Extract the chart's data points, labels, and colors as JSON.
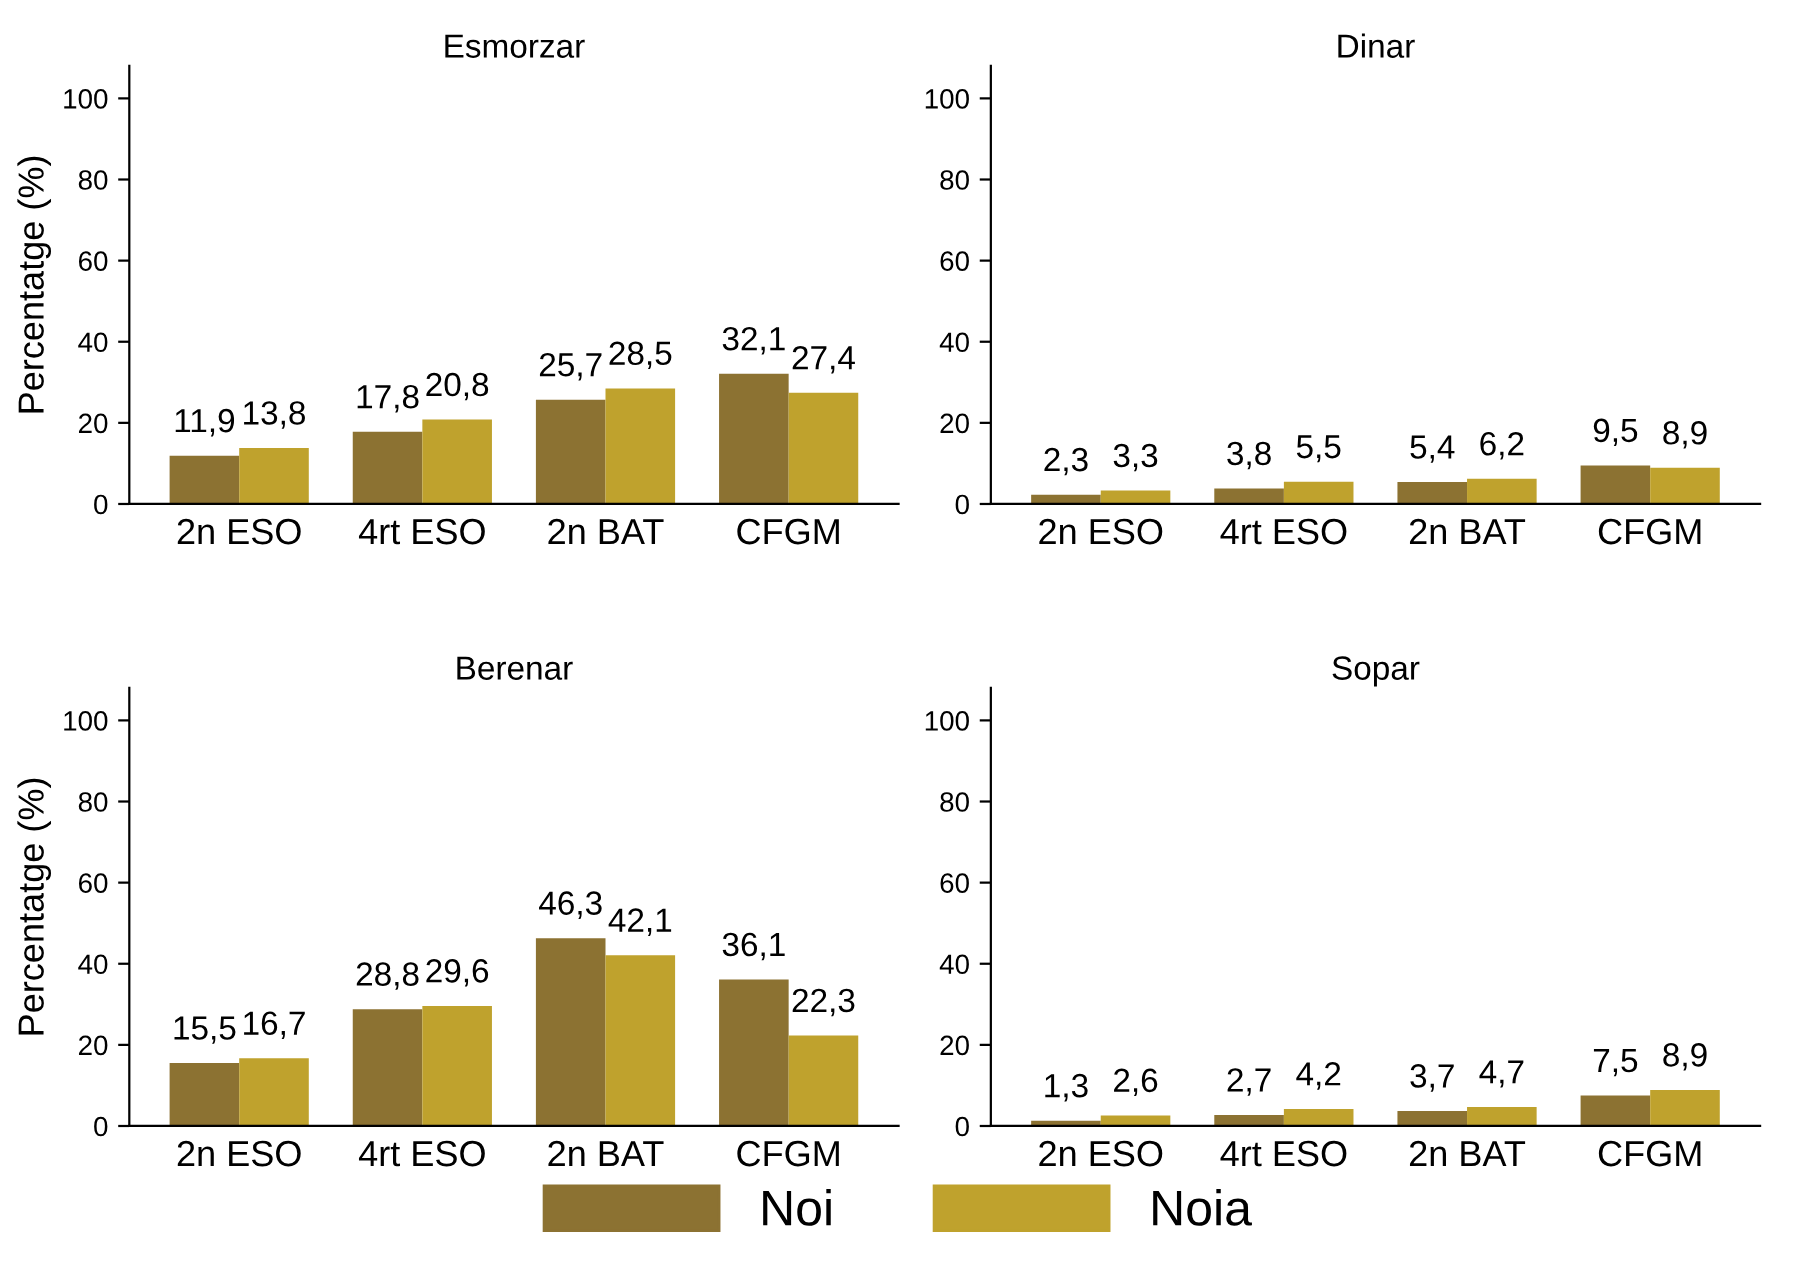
{
  "chart_data": [
    {
      "type": "bar",
      "title": "Esmorzar",
      "ylabel": "Percentatge (%)",
      "categories": [
        "2n ESO",
        "4rt ESO",
        "2n BAT",
        "CFGM"
      ],
      "ylim": [
        0,
        108
      ],
      "yticks": [
        0,
        20,
        40,
        60,
        80,
        100
      ],
      "grid": false,
      "legend": "bottom",
      "series": [
        {
          "name": "Noi",
          "color": "#8c7232",
          "values": [
            11.9,
            17.8,
            25.7,
            32.1
          ],
          "value_labels": [
            "11,9",
            "17,8",
            "25,7",
            "32,1"
          ]
        },
        {
          "name": "Noia",
          "color": "#bfa22d",
          "values": [
            13.8,
            20.8,
            28.5,
            27.4
          ],
          "value_labels": [
            "13,8",
            "20,8",
            "28,5",
            "27,4"
          ]
        }
      ]
    },
    {
      "type": "bar",
      "title": "Dinar",
      "categories": [
        "2n ESO",
        "4rt ESO",
        "2n BAT",
        "CFGM"
      ],
      "ylim": [
        0,
        108
      ],
      "yticks": [
        0,
        20,
        40,
        60,
        80,
        100
      ],
      "grid": false,
      "series": [
        {
          "name": "Noi",
          "color": "#8c7232",
          "values": [
            2.3,
            3.8,
            5.4,
            9.5
          ],
          "value_labels": [
            "2,3",
            "3,8",
            "5,4",
            "9,5"
          ]
        },
        {
          "name": "Noia",
          "color": "#bfa22d",
          "values": [
            3.3,
            5.5,
            6.2,
            8.9
          ],
          "value_labels": [
            "3,3",
            "5,5",
            "6,2",
            "8,9"
          ]
        }
      ]
    },
    {
      "type": "bar",
      "title": "Berenar",
      "ylabel": "Percentatge (%)",
      "categories": [
        "2n ESO",
        "4rt ESO",
        "2n BAT",
        "CFGM"
      ],
      "ylim": [
        0,
        108
      ],
      "yticks": [
        0,
        20,
        40,
        60,
        80,
        100
      ],
      "grid": false,
      "series": [
        {
          "name": "Noi",
          "color": "#8c7232",
          "values": [
            15.5,
            28.8,
            46.3,
            36.1
          ],
          "value_labels": [
            "15,5",
            "28,8",
            "46,3",
            "36,1"
          ]
        },
        {
          "name": "Noia",
          "color": "#bfa22d",
          "values": [
            16.7,
            29.6,
            42.1,
            22.3
          ],
          "value_labels": [
            "16,7",
            "29,6",
            "42,1",
            "22,3"
          ]
        }
      ]
    },
    {
      "type": "bar",
      "title": "Sopar",
      "categories": [
        "2n ESO",
        "4rt ESO",
        "2n BAT",
        "CFGM"
      ],
      "ylim": [
        0,
        108
      ],
      "yticks": [
        0,
        20,
        40,
        60,
        80,
        100
      ],
      "grid": false,
      "series": [
        {
          "name": "Noi",
          "color": "#8c7232",
          "values": [
            1.3,
            2.7,
            3.7,
            7.5
          ],
          "value_labels": [
            "1,3",
            "2,7",
            "3,7",
            "7,5"
          ]
        },
        {
          "name": "Noia",
          "color": "#bfa22d",
          "values": [
            2.6,
            4.2,
            4.7,
            8.9
          ],
          "value_labels": [
            "2,6",
            "4,2",
            "4,7",
            "8,9"
          ]
        }
      ]
    }
  ]
}
